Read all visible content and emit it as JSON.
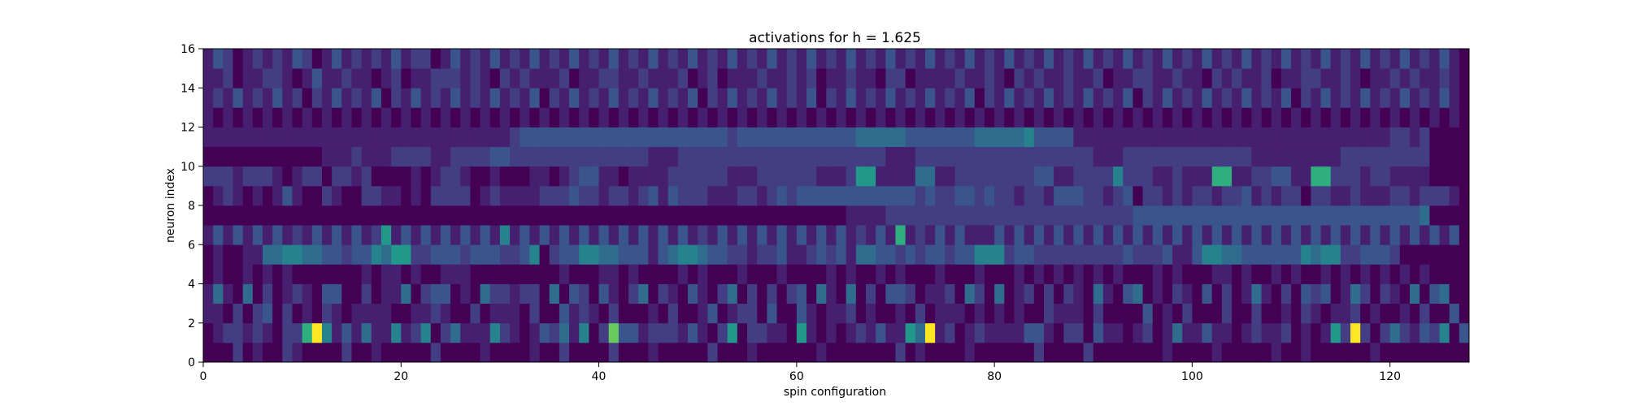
{
  "chart_data": {
    "type": "heatmap",
    "title": "activations for h = 1.625",
    "xlabel": "spin configuration",
    "ylabel": "neuron index",
    "xlim": [
      0,
      128
    ],
    "ylim": [
      0,
      16
    ],
    "xticks": [
      0,
      20,
      40,
      60,
      80,
      100,
      120
    ],
    "yticks": [
      0,
      2,
      4,
      6,
      8,
      10,
      12,
      14,
      16
    ],
    "colormap": "viridis",
    "value_range": [
      0,
      1
    ],
    "grid": false,
    "rows": 16,
    "cols": 128,
    "row_order": "index 0 = neuron 0 (bottom row)",
    "values": [
      "0002010021000020010000020000100001002000020001000002000100000010000000201000010000002000020000000100001000001001000000100000000",
      "0122121022795131411512502411152101324150283312221310260221106101012131164912012111133102203110120141131101211201016292024213250321",
      "1102023020102101111001121002011102003121020001020013012203003101120100102011101010100211102000030102000200200102101120100102003",
      "1410402012103300201140233010422122040320310240210310240202023041040203320112042040120202104103401021030201410203230142021040340",
      "0100101010000000101101001110000000001000110100001010001000100001010010100010001000101010101010001010001101001010010101010101000",
      "0100114455443323354662233323332235023355443331345543322122311232314433232332335552332222222223222311355443333335455223332",
      "1313131312131313126131313131315131313131313131313121313131313131312131712131311131313131313131313131313131313131313131313131313",
      "0000000000000000000000000000000000000000000000000000000000000000011112222222222222222222222222333333333333333333333333333334",
      "0121010131002100221101022220121111222322122123132221112212323333333333332322332322122133322123022121221223121220221121112212221",
      "2221222101220221200001012210010001101233110111122222211122222211126611114411222222223311222252221121117711223311772221221111",
      "0000000000001112111222211222233222222222222221112222222222222222222221112222222222222222221112222222222222111111111222222222",
      "1111111111111111111111111111111233333333333333333333323333333333334444433333334444453333111111111111111111111111111111112212",
      "1010101010101010101010101010101010101010101010101010101010101010101010101010101010101010101010101010101010101010101010101010101",
      "1213121312021312130213121312131213021312131213121302131213121302131213121312130213121312131213021312131213121302131213121312131",
      "1120112210131121101201122212102121112011221121112012011121121201121102201111211210212112112011221121102121120112211210112121121",
      "1320121213201312121312201312131213121312131213121312131213121312131213121312131213121312131213121312131213121312131213121312131"
    ]
  }
}
